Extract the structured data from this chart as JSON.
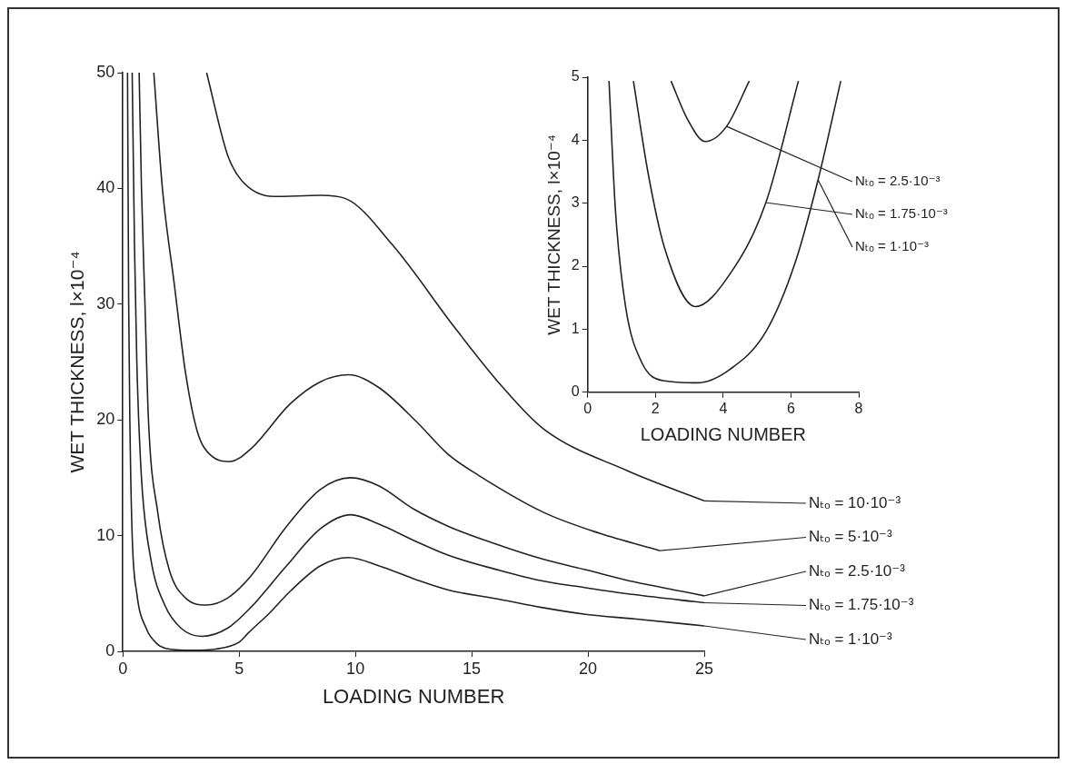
{
  "chart_data": [
    {
      "type": "line",
      "xlabel": "LOADING NUMBER",
      "ylabel": "WET THICKNESS, l×10⁻⁴",
      "xlim": [
        0,
        25
      ],
      "ylim": [
        0,
        50
      ],
      "xticks": [
        0,
        5,
        10,
        15,
        20,
        25
      ],
      "yticks": [
        0,
        10,
        20,
        30,
        40,
        50
      ],
      "grid": false,
      "marker": "none",
      "line_style": "solid",
      "series": [
        {
          "name": "Nₜₒ = 10·10⁻³",
          "color": "#222222",
          "x": [
            3.6,
            4.5,
            5.1,
            6.5,
            8.5,
            9.6,
            11.6,
            14.3,
            16.3,
            18.1,
            21.7,
            25
          ],
          "values": [
            50,
            42.9,
            40.7,
            39.3,
            39.4,
            39.1,
            35.1,
            27.9,
            22.9,
            19.2,
            15.6,
            13
          ]
        },
        {
          "name": "Nₜₒ = 5·10⁻³",
          "color": "#222222",
          "x": [
            1.33,
            1.7,
            2.2,
            2.7,
            3.2,
            3.8,
            4.6,
            5.5,
            7.2,
            8.5,
            9.7,
            11,
            12.6,
            14,
            15.3,
            18.1,
            20.5,
            23.1
          ],
          "values": [
            50,
            40,
            31.9,
            24,
            19,
            16.9,
            16.4,
            17.5,
            21.4,
            23.3,
            23.9,
            22.8,
            19.9,
            17,
            15.2,
            12,
            10.2,
            8.7
          ]
        },
        {
          "name": "Nₜₒ = 2.5·10⁻³",
          "color": "#222222",
          "x": [
            0.7,
            0.8,
            0.95,
            1.1,
            1.5,
            2,
            2.7,
            3.6,
            4.5,
            5.5,
            7,
            8.5,
            9.8,
            11,
            12.5,
            14,
            16,
            18,
            20,
            22,
            24,
            25
          ],
          "values": [
            50,
            40,
            30,
            20,
            12,
            7,
            4.6,
            4,
            4.6,
            6.5,
            10.7,
            14,
            15,
            14.3,
            12.3,
            10.8,
            9.3,
            8,
            7,
            6,
            5.2,
            4.8
          ]
        },
        {
          "name": "Nₜₒ = 1.75·10⁻³",
          "color": "#222222",
          "x": [
            0.4,
            0.5,
            0.6,
            0.8,
            1.2,
            1.8,
            2.5,
            3.4,
            4.5,
            5.5,
            7,
            8.5,
            9.8,
            11,
            12.6,
            14,
            16.2,
            18,
            19.9,
            22,
            25
          ],
          "values": [
            50,
            35,
            25,
            15,
            8,
            4,
            2,
            1.3,
            2,
            3.8,
            7.3,
            10.6,
            11.8,
            11,
            9.5,
            8.3,
            7,
            6.1,
            5.5,
            4.9,
            4.2
          ]
        },
        {
          "name": "Nₜₒ = 1·10⁻³",
          "color": "#222222",
          "x": [
            0.2,
            0.25,
            0.3,
            0.4,
            0.6,
            1,
            1.5,
            2,
            3,
            4,
            5,
            5.4,
            6.3,
            7.2,
            8.5,
            9.7,
            11,
            12.6,
            14,
            16.2,
            18,
            19.9,
            22,
            25
          ],
          "values": [
            50,
            30,
            20,
            10,
            5,
            2,
            0.6,
            0.2,
            0.1,
            0.2,
            0.8,
            1.6,
            3.3,
            5.2,
            7.4,
            8.1,
            7.4,
            6.2,
            5.3,
            4.5,
            3.8,
            3.2,
            2.8,
            2.2
          ]
        }
      ]
    },
    {
      "type": "line",
      "xlabel": "LOADING NUMBER",
      "ylabel": "WET THICKNESS, l×10⁻⁴",
      "xlim": [
        0,
        8
      ],
      "ylim": [
        0,
        5
      ],
      "xticks": [
        0,
        2,
        4,
        6,
        8
      ],
      "yticks": [
        0,
        1,
        2,
        3,
        4,
        5
      ],
      "grid": false,
      "marker": "none",
      "line_style": "solid",
      "series": [
        {
          "name": "Nₜₒ = 2.5·10⁻³",
          "color": "#222222",
          "x": [
            2.46,
            2.94,
            3.47,
            4.1,
            4.77
          ],
          "values": [
            4.94,
            4.34,
            3.98,
            4.22,
            4.94
          ]
        },
        {
          "name": "Nₜₒ = 1.75·10⁻³",
          "color": "#222222",
          "x": [
            1.35,
            1.78,
            2.27,
            3.18,
            4.19,
            5.26,
            6.22
          ],
          "values": [
            4.94,
            3.49,
            2.29,
            1.36,
            1.87,
            3.01,
            4.94
          ]
        },
        {
          "name": "Nₜₒ = 1·10⁻³",
          "color": "#222222",
          "x": [
            0.63,
            0.82,
            1.11,
            1.59,
            2.27,
            3.23,
            4.19,
            5.26,
            6.12,
            6.8,
            7.47
          ],
          "values": [
            4.94,
            2.89,
            1.39,
            0.48,
            0.18,
            0.15,
            0.36,
            0.96,
            2.05,
            3.37,
            4.94
          ]
        }
      ]
    }
  ]
}
